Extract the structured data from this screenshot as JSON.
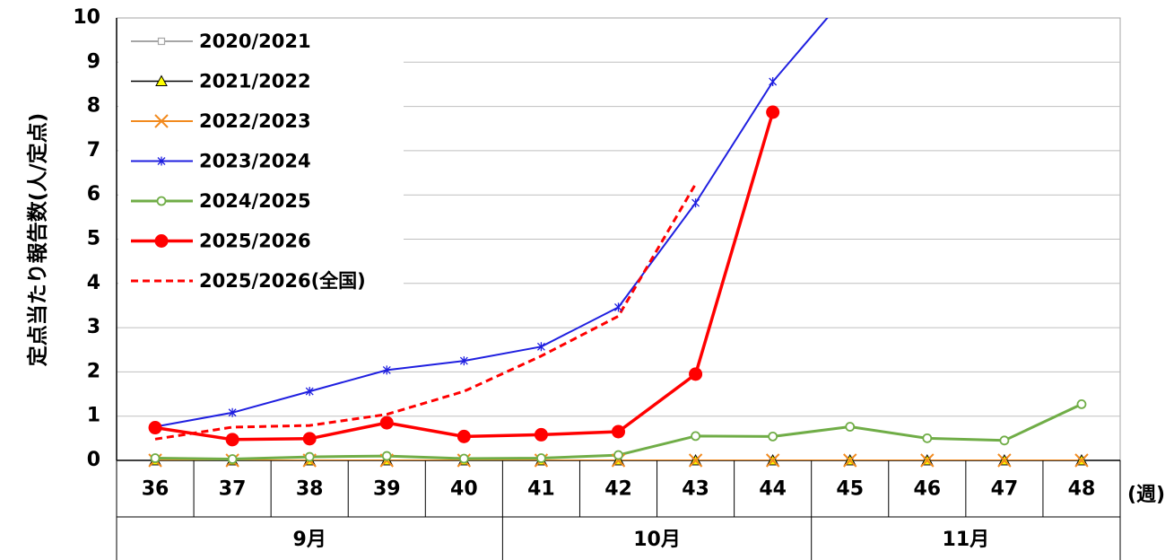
{
  "chart_data": {
    "type": "line",
    "title": "",
    "ylabel": "定点当たり報告数(人/定点)",
    "xlabel": "",
    "x_unit_label": "(週)",
    "ylim": [
      0,
      10
    ],
    "yticks": [
      "0",
      "1",
      "2",
      "3",
      "4",
      "5",
      "6",
      "7",
      "8",
      "9",
      "10"
    ],
    "categories": [
      "36",
      "37",
      "38",
      "39",
      "40",
      "41",
      "42",
      "43",
      "44",
      "45",
      "46",
      "47",
      "48"
    ],
    "month_groups": [
      {
        "label": "9月",
        "weeks": [
          "36",
          "37",
          "38",
          "39",
          "40"
        ]
      },
      {
        "label": "10月",
        "weeks": [
          "41",
          "42",
          "43",
          "44"
        ]
      },
      {
        "label": "11月",
        "weeks": [
          "45",
          "46",
          "47",
          "48"
        ]
      }
    ],
    "grid": true,
    "legend_position": "top-left",
    "series": [
      {
        "name": "2020/2021",
        "color": "#a6a6a6",
        "marker": "square",
        "dashed": false,
        "values": [
          0,
          0,
          0,
          0,
          0,
          0,
          0,
          0,
          0,
          0,
          0,
          0,
          0
        ]
      },
      {
        "name": "2021/2022",
        "color": "#000000",
        "marker": "triangle",
        "dashed": false,
        "values": [
          0,
          0,
          0,
          0,
          0,
          0,
          0,
          0,
          0,
          0,
          0,
          0,
          0
        ]
      },
      {
        "name": "2022/2023",
        "color": "#f28a1e",
        "marker": "x",
        "dashed": false,
        "values": [
          0,
          0,
          0,
          0,
          0,
          0,
          0,
          0,
          0,
          0,
          0,
          0,
          0
        ]
      },
      {
        "name": "2023/2024",
        "color": "#1f1fe0",
        "marker": "star",
        "dashed": false,
        "values": [
          0.76,
          1.08,
          1.56,
          2.04,
          2.25,
          2.57,
          3.46,
          5.82,
          8.56,
          10.6,
          null,
          null,
          null
        ]
      },
      {
        "name": "2024/2025",
        "color": "#70ad47",
        "marker": "circle-open",
        "dashed": false,
        "values": [
          0.05,
          0.03,
          0.08,
          0.1,
          0.04,
          0.05,
          0.12,
          0.55,
          0.54,
          0.76,
          0.5,
          0.45,
          1.27
        ]
      },
      {
        "name": "2025/2026",
        "color": "#ff0000",
        "marker": "circle-filled",
        "dashed": false,
        "values": [
          0.74,
          0.47,
          0.49,
          0.85,
          0.54,
          0.58,
          0.65,
          1.95,
          7.87,
          null,
          null,
          null,
          null
        ]
      },
      {
        "name": "2025/2026(全国)",
        "color": "#ff0000",
        "marker": "none",
        "dashed": true,
        "values": [
          0.48,
          0.75,
          0.79,
          1.04,
          1.56,
          2.36,
          3.26,
          6.25,
          null,
          null,
          null,
          null,
          null
        ]
      }
    ]
  }
}
